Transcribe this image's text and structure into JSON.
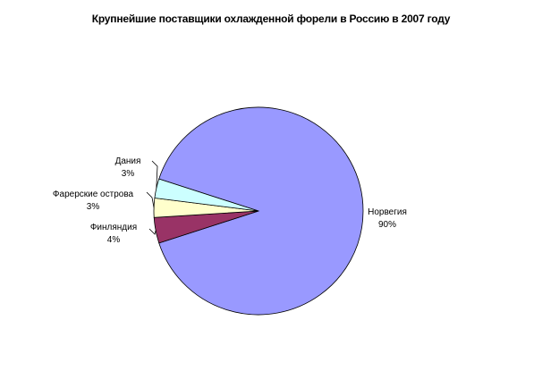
{
  "chart_data": {
    "type": "pie",
    "title": "Крупнейшие поставщики охлажденной форели в Россию в 2007 году",
    "slices": [
      {
        "label": "Норвегия",
        "value": 90,
        "pct_label": "90%",
        "color": "#9999ff"
      },
      {
        "label": "Финляндия",
        "value": 4,
        "pct_label": "4%",
        "color": "#993366"
      },
      {
        "label": "Фарерские острова",
        "value": 3,
        "pct_label": "3%",
        "color": "#ffffcc"
      },
      {
        "label": "Дания",
        "value": 3,
        "pct_label": "3%",
        "color": "#ccffff"
      }
    ]
  }
}
